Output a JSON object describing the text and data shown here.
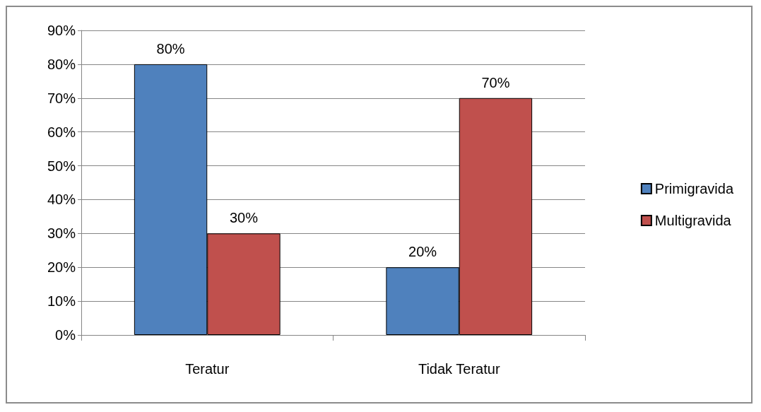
{
  "chart_data": {
    "type": "bar",
    "categories": [
      "Teratur",
      "Tidak Teratur"
    ],
    "series": [
      {
        "name": "Primigravida",
        "color": "#4f81bd",
        "values": [
          80,
          20
        ],
        "value_labels": [
          "80%",
          "20%"
        ]
      },
      {
        "name": "Multigravida",
        "color": "#c0504d",
        "values": [
          30,
          70
        ],
        "value_labels": [
          "30%",
          "70%"
        ]
      }
    ],
    "ylim": [
      0,
      90
    ],
    "yticks": [
      {
        "value": 0,
        "label": "0%"
      },
      {
        "value": 10,
        "label": "10%"
      },
      {
        "value": 20,
        "label": "20%"
      },
      {
        "value": 30,
        "label": "30%"
      },
      {
        "value": 40,
        "label": "40%"
      },
      {
        "value": 50,
        "label": "50%"
      },
      {
        "value": 60,
        "label": "60%"
      },
      {
        "value": 70,
        "label": "70%"
      },
      {
        "value": 80,
        "label": "80%"
      },
      {
        "value": 90,
        "label": "90%"
      }
    ],
    "grid": "y",
    "legend": "right"
  }
}
